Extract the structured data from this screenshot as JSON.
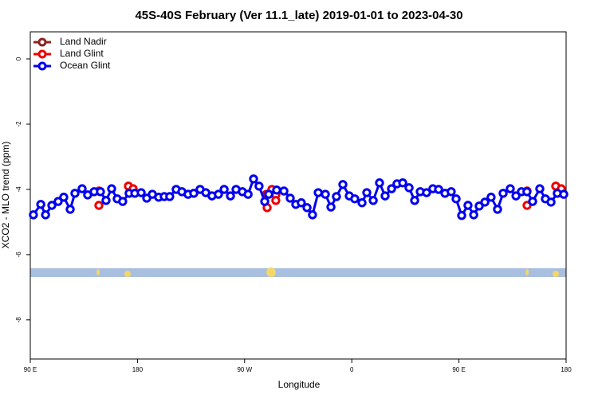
{
  "chart_data": {
    "type": "line",
    "title": "45S-40S February (Ver 11.1_late)   2019-01-01 to 2023-04-30",
    "x_label": "Longitude",
    "y_label": "XCO2 - MLO trend (ppm)",
    "xlim": [
      90,
      540
    ],
    "xticks": [
      {
        "value": 90,
        "label": "90 E"
      },
      180,
      {
        "value": 270,
        "label": "90 W"
      },
      {
        "value": 360,
        "label": "0"
      },
      {
        "value": 450,
        "label": "90 E"
      },
      {
        "value": 540,
        "label": "180"
      }
    ],
    "ylim": [
      -9.2,
      0.83
    ],
    "yticks": [
      0,
      -2,
      -4,
      -6,
      -8
    ],
    "legend": "top-left",
    "series": [
      {
        "name": "Land Nadir",
        "color": "#8b2323",
        "line": true,
        "x": [],
        "values": []
      },
      {
        "name": "Land Glint",
        "color": "#ee0000",
        "line": false,
        "x": [
          147.6,
          147.6,
          172.4,
          176.4,
          288.2,
          288.9,
          292.9,
          296.2,
          296.2,
          507.2,
          507.2,
          531.3,
          536
        ],
        "values": [
          -4.05,
          -4.49,
          -3.9,
          -3.98,
          -4.15,
          -4.56,
          -4.0,
          -4.17,
          -4.34,
          -4.05,
          -4.49,
          -3.9,
          -3.98
        ]
      },
      {
        "name": "Ocean Glint",
        "color": "#0000ee",
        "line": true,
        "x": [
          92.6,
          98.8,
          102.8,
          108.1,
          113.4,
          118.1,
          123.5,
          127.5,
          133.5,
          138.2,
          143.6,
          148.9,
          153.6,
          158.3,
          163,
          167.6,
          173,
          177.8,
          183.1,
          187.8,
          192.5,
          197.8,
          202.5,
          207.1,
          212.5,
          217.3,
          222.5,
          227.3,
          232.6,
          237.4,
          242.6,
          248,
          252.8,
          258.1,
          262.8,
          268.1,
          272.9,
          277.5,
          282.1,
          286.9,
          290.3,
          296.9,
          303,
          308.3,
          313,
          317.6,
          322.4,
          327,
          331.8,
          337.8,
          342.5,
          347.1,
          352.5,
          357.9,
          362.5,
          368.6,
          372.6,
          378,
          383.3,
          388,
          393.4,
          398,
          402.8,
          408.1,
          412.8,
          417.5,
          422.8,
          428.1,
          432.9,
          438.3,
          443.5,
          447.6,
          452.3,
          457.6,
          462.4,
          467,
          471.8,
          477,
          482.4,
          487.1,
          493.1,
          497.9,
          502.5,
          507.1,
          511.9,
          517.9,
          522.6,
          527.3,
          532.6,
          538
        ],
        "values": [
          -4.78,
          -4.46,
          -4.78,
          -4.49,
          -4.37,
          -4.24,
          -4.61,
          -4.12,
          -3.98,
          -4.17,
          -4.07,
          -4.07,
          -4.34,
          -3.98,
          -4.29,
          -4.37,
          -4.12,
          -4.12,
          -4.1,
          -4.27,
          -4.15,
          -4.24,
          -4.22,
          -4.22,
          -4.0,
          -4.07,
          -4.15,
          -4.12,
          -4.0,
          -4.1,
          -4.2,
          -4.15,
          -4.0,
          -4.2,
          -4.0,
          -4.07,
          -4.15,
          -3.68,
          -3.9,
          -4.37,
          -4.15,
          -4.02,
          -4.05,
          -4.27,
          -4.46,
          -4.41,
          -4.56,
          -4.78,
          -4.1,
          -4.15,
          -4.54,
          -4.22,
          -3.85,
          -4.2,
          -4.29,
          -4.41,
          -4.1,
          -4.34,
          -3.8,
          -4.2,
          -3.98,
          -3.83,
          -3.8,
          -3.95,
          -4.34,
          -4.07,
          -4.1,
          -3.98,
          -4.0,
          -4.12,
          -4.07,
          -4.29,
          -4.8,
          -4.49,
          -4.78,
          -4.51,
          -4.39,
          -4.24,
          -4.61,
          -4.12,
          -3.98,
          -4.2,
          -4.07,
          -4.07,
          -4.37,
          -3.98,
          -4.29,
          -4.39,
          -4.12,
          -4.15
        ]
      }
    ]
  }
}
